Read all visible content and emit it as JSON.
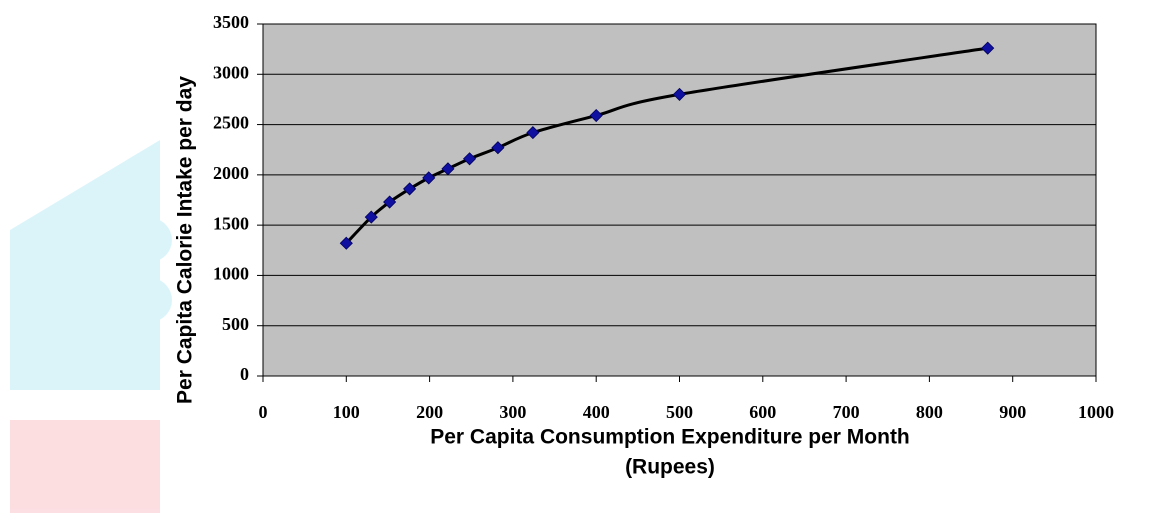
{
  "chart_data": {
    "type": "scatter",
    "x": [
      100,
      130,
      152,
      176,
      199,
      222,
      248,
      282,
      324,
      400,
      500,
      870
    ],
    "series": [
      {
        "color": "#1010a0",
        "values": [
          1320,
          1580,
          1730,
          1860,
          1970,
          2060,
          2160,
          2270,
          2420,
          2590,
          2800,
          3260
        ]
      }
    ],
    "line_color": "#000000",
    "xlim": [
      0,
      1000
    ],
    "xticks": [
      0,
      100,
      200,
      300,
      400,
      500,
      600,
      700,
      800,
      900,
      1000
    ],
    "ylim": [
      0,
      3500
    ],
    "yticks": [
      0,
      500,
      1000,
      1500,
      2000,
      2500,
      3000,
      3500
    ],
    "grid": true,
    "plot_background": "#c0c0c0",
    "xlabel": [
      "Per Capita Consumption Expenditure per Month",
      "(Rupees)"
    ],
    "ylabel": "Per Capita Calorie Intake per day"
  }
}
